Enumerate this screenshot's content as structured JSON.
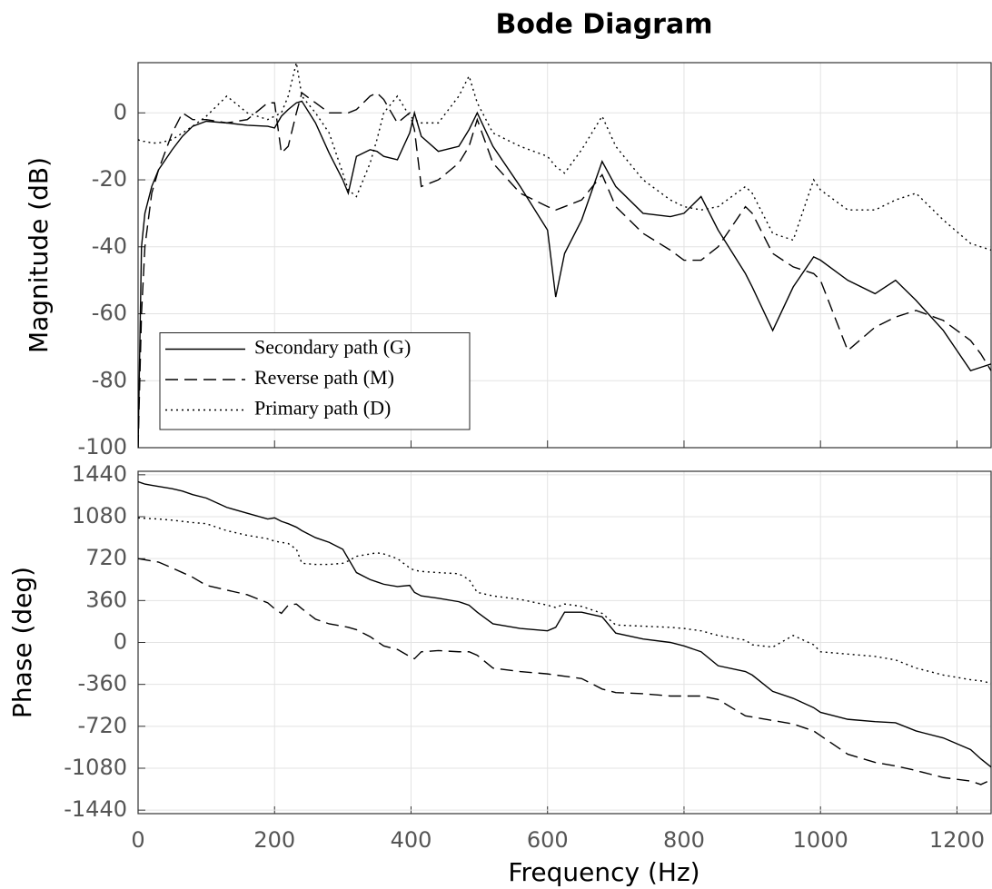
{
  "chart_data": [
    {
      "type": "line",
      "title": "Bode Diagram",
      "ylabel": "Magnitude (dB)",
      "xlim": [
        0,
        1250
      ],
      "xticks": [
        0,
        200,
        400,
        600,
        800,
        1000,
        1200
      ],
      "ylim": [
        -100,
        15
      ],
      "yticks": [
        -100,
        -80,
        -60,
        -40,
        -20,
        0
      ],
      "grid": true,
      "legend": "lower left",
      "x": [
        0,
        5,
        10,
        20,
        30,
        50,
        65,
        80,
        100,
        130,
        160,
        190,
        200,
        210,
        220,
        232,
        240,
        260,
        280,
        300,
        308,
        320,
        340,
        350,
        360,
        380,
        398,
        405,
        415,
        440,
        470,
        485,
        497,
        520,
        560,
        600,
        612,
        625,
        650,
        680,
        700,
        740,
        780,
        800,
        825,
        850,
        890,
        900,
        930,
        960,
        990,
        1000,
        1040,
        1080,
        1110,
        1140,
        1180,
        1220,
        1235,
        1250
      ],
      "series": [
        {
          "name": "Secondary path (G)",
          "color": "#000000",
          "style": "solid",
          "values": [
            -100,
            -40,
            -30,
            -22,
            -17,
            -11,
            -7,
            -4,
            -2.5,
            -3,
            -3.7,
            -4,
            -4.5,
            -1,
            1,
            3,
            3.5,
            -3,
            -12,
            -20,
            -24,
            -13,
            -11,
            -11.5,
            -13,
            -14,
            -6,
            0,
            -7,
            -11.5,
            -10,
            -5,
            0,
            -10,
            -22,
            -35,
            -55,
            -42,
            -32,
            -14.5,
            -22,
            -30,
            -31,
            -30,
            -25,
            -35,
            -48,
            -52,
            -65,
            -52,
            -43,
            -44,
            -50,
            -54,
            -50,
            -56,
            -65,
            -77,
            -76,
            -75
          ]
        },
        {
          "name": "Reverse path (M)",
          "color": "#000000",
          "style": "dashed",
          "values": [
            -100,
            -60,
            -40,
            -24,
            -17,
            -6,
            0,
            -2,
            -2,
            -3,
            -2,
            3,
            3,
            -12,
            -10,
            0,
            6,
            3,
            0,
            0,
            0,
            1,
            5,
            6,
            4,
            -3,
            0,
            -5,
            -22,
            -20,
            -15,
            -10,
            -2,
            -15,
            -24,
            -28,
            -29,
            -28,
            -26,
            -18.5,
            -28,
            -36,
            -41,
            -44,
            -44,
            -40,
            -28,
            -30,
            -42,
            -46,
            -48,
            -50,
            -71,
            -64,
            -61,
            -59,
            -62,
            -68,
            -72,
            -77
          ]
        },
        {
          "name": "Primary path (D)",
          "color": "#000000",
          "style": "dotted",
          "values": [
            -8,
            -8.5,
            -8.5,
            -9,
            -9,
            -8,
            -6,
            -4,
            -1,
            5,
            0,
            -2,
            -1,
            0,
            5,
            15,
            5,
            0,
            -6,
            -18,
            -23,
            -25,
            -15,
            -8,
            0,
            5,
            -1,
            -2,
            -3,
            -3,
            5,
            11,
            3,
            -6,
            -10,
            -13,
            -16,
            -18,
            -11,
            -1,
            -10,
            -20,
            -26,
            -28,
            -29,
            -28,
            -22,
            -24,
            -36,
            -38,
            -20,
            -23,
            -29,
            -29,
            -26,
            -24,
            -32,
            -39,
            -40,
            -41
          ]
        }
      ]
    },
    {
      "type": "line",
      "ylabel": "Phase (deg)",
      "xlabel": "Frequency  (Hz)",
      "xlim": [
        0,
        1250
      ],
      "xticks": [
        0,
        200,
        400,
        600,
        800,
        1000,
        1200
      ],
      "ylim": [
        -1470,
        1470
      ],
      "yticks": [
        -1440,
        -1080,
        -720,
        -360,
        0,
        360,
        720,
        1080,
        1440
      ],
      "grid": true,
      "x": [
        0,
        5,
        10,
        20,
        30,
        50,
        65,
        80,
        100,
        130,
        160,
        190,
        200,
        210,
        220,
        232,
        240,
        260,
        280,
        300,
        308,
        320,
        340,
        350,
        360,
        380,
        398,
        405,
        415,
        440,
        470,
        485,
        497,
        520,
        560,
        600,
        612,
        625,
        650,
        680,
        700,
        740,
        780,
        800,
        825,
        850,
        890,
        900,
        930,
        960,
        990,
        1000,
        1040,
        1080,
        1110,
        1140,
        1180,
        1220,
        1235,
        1250
      ],
      "series": [
        {
          "color": "#000000",
          "style": "solid",
          "values": [
            1380,
            1370,
            1360,
            1350,
            1340,
            1320,
            1300,
            1270,
            1240,
            1160,
            1110,
            1060,
            1070,
            1040,
            1020,
            990,
            960,
            900,
            860,
            800,
            720,
            600,
            540,
            520,
            500,
            480,
            490,
            430,
            400,
            380,
            350,
            320,
            260,
            160,
            120,
            100,
            130,
            260,
            260,
            220,
            80,
            30,
            0,
            -30,
            -80,
            -200,
            -250,
            -280,
            -420,
            -480,
            -560,
            -600,
            -660,
            -680,
            -690,
            -760,
            -820,
            -920,
            -1000,
            -1070
          ]
        },
        {
          "color": "#000000",
          "style": "dashed",
          "values": [
            720,
            715,
            710,
            700,
            690,
            640,
            600,
            560,
            490,
            450,
            410,
            340,
            290,
            250,
            320,
            330,
            290,
            200,
            160,
            140,
            130,
            110,
            50,
            10,
            -30,
            -60,
            -120,
            -140,
            -80,
            -70,
            -80,
            -80,
            -110,
            -220,
            -250,
            -270,
            -280,
            -290,
            -310,
            -400,
            -430,
            -440,
            -460,
            -460,
            -460,
            -490,
            -630,
            -640,
            -670,
            -700,
            -760,
            -800,
            -960,
            -1030,
            -1060,
            -1100,
            -1160,
            -1190,
            -1220,
            -1180
          ]
        },
        {
          "color": "#000000",
          "style": "dotted",
          "values": [
            1070,
            1068,
            1066,
            1063,
            1060,
            1050,
            1040,
            1030,
            1020,
            960,
            920,
            890,
            870,
            860,
            850,
            800,
            680,
            670,
            670,
            680,
            700,
            740,
            760,
            770,
            760,
            720,
            640,
            620,
            610,
            600,
            590,
            540,
            430,
            400,
            370,
            320,
            300,
            330,
            310,
            250,
            150,
            140,
            130,
            120,
            100,
            60,
            20,
            -20,
            -40,
            60,
            -20,
            -80,
            -100,
            -120,
            -150,
            -220,
            -280,
            -320,
            -330,
            -350
          ]
        }
      ]
    }
  ]
}
